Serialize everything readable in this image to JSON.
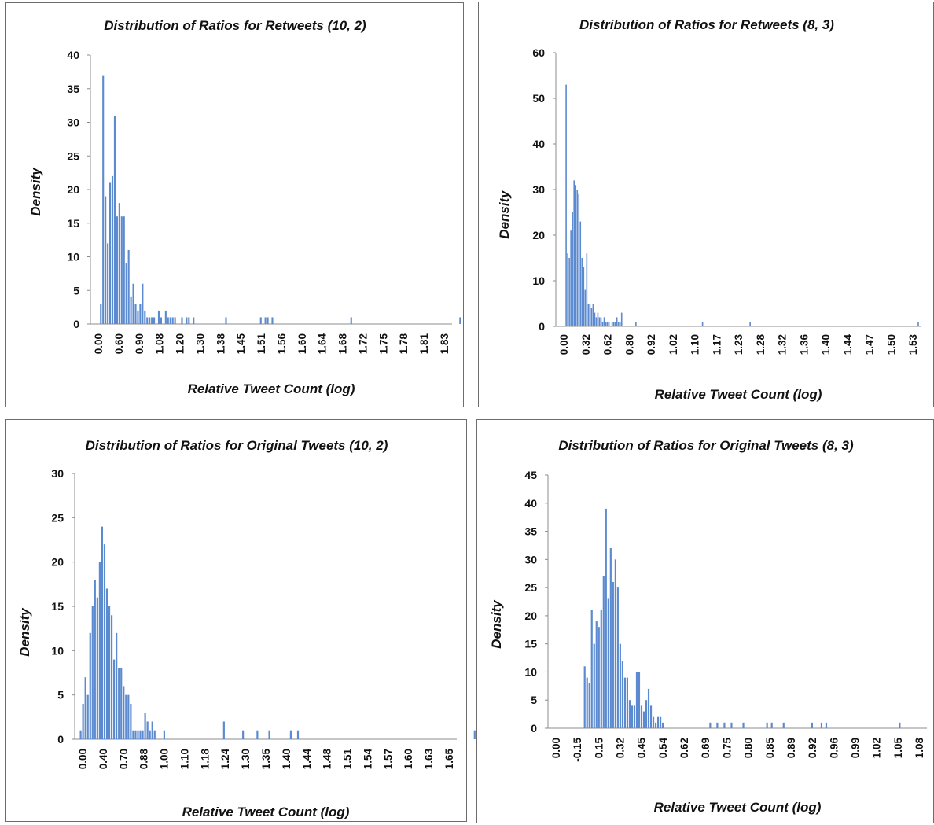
{
  "chart_data": [
    {
      "type": "bar",
      "title": "Distribution of Ratios for Retweets (10, 2)",
      "xlabel": "Relative Tweet Count (log)",
      "ylabel": "Density",
      "ylim": [
        0,
        40
      ],
      "yticks": [
        "0",
        "5",
        "10",
        "15",
        "20",
        "25",
        "30",
        "35",
        "40"
      ],
      "xticks": [
        "0.00",
        "0.60",
        "0.90",
        "1.08",
        "1.20",
        "1.30",
        "1.38",
        "1.45",
        "1.51",
        "1.56",
        "1.60",
        "1.64",
        "1.68",
        "1.72",
        "1.75",
        "1.78",
        "1.81",
        "1.83"
      ],
      "xlim": [
        0,
        156
      ],
      "values": [
        3,
        37,
        19,
        12,
        21,
        22,
        31,
        16,
        18,
        16,
        16,
        9,
        11,
        4,
        6,
        3,
        2,
        3,
        6,
        2,
        1,
        1,
        1,
        1,
        0,
        2,
        1,
        0,
        2,
        1,
        1,
        1,
        1,
        0,
        0,
        1,
        0,
        1,
        1,
        0,
        1,
        0,
        0,
        0,
        0,
        0,
        0,
        0,
        0,
        0,
        0,
        0,
        0,
        0,
        1,
        0,
        0,
        0,
        0,
        0,
        0,
        0,
        0,
        0,
        0,
        0,
        0,
        0,
        0,
        1,
        0,
        1,
        1,
        0,
        1,
        0,
        0,
        0,
        0,
        0,
        0,
        0,
        0,
        0,
        0,
        0,
        0,
        0,
        0,
        0,
        0,
        0,
        0,
        0,
        0,
        0,
        0,
        0,
        0,
        0,
        0,
        0,
        0,
        0,
        0,
        0,
        0,
        0,
        1,
        0,
        0,
        0,
        0,
        0,
        0,
        0,
        0,
        0,
        0,
        0,
        0,
        0,
        0,
        0,
        0,
        0,
        0,
        0,
        0,
        0,
        0,
        0,
        0,
        0,
        0,
        0,
        0,
        0,
        0,
        0,
        0,
        0,
        0,
        0,
        0,
        0,
        0,
        0,
        0,
        0,
        0,
        0,
        0,
        0,
        0,
        1
      ]
    },
    {
      "type": "bar",
      "title": "Distribution of Ratios for Retweets (8, 3)",
      "xlabel": "Relative Tweet Count (log)",
      "ylabel": "Density",
      "ylim": [
        0,
        60
      ],
      "yticks": [
        "0",
        "10",
        "20",
        "30",
        "40",
        "50",
        "60"
      ],
      "xticks": [
        "0.00",
        "0.32",
        "0.62",
        "0.80",
        "0.92",
        "1.02",
        "1.10",
        "1.17",
        "1.23",
        "1.28",
        "1.32",
        "1.36",
        "1.40",
        "1.44",
        "1.47",
        "1.50",
        "1.53"
      ],
      "xlim": [
        0,
        230
      ],
      "values": [
        53,
        16,
        15,
        21,
        25,
        32,
        31,
        30,
        29,
        23,
        15,
        13,
        8,
        16,
        5,
        5,
        4,
        5,
        3,
        2,
        3,
        2,
        2,
        1,
        2,
        1,
        1,
        1,
        0,
        1,
        1,
        1,
        2,
        1,
        1,
        3,
        0,
        0,
        0,
        0,
        0,
        0,
        0,
        0,
        1,
        0,
        0,
        0,
        0,
        0,
        0,
        0,
        0,
        0,
        0,
        0,
        0,
        0,
        0,
        0,
        0,
        0,
        0,
        0,
        0,
        0,
        0,
        0,
        0,
        0,
        0,
        0,
        0,
        0,
        0,
        0,
        0,
        0,
        0,
        0,
        0,
        0,
        0,
        0,
        0,
        0,
        1,
        0,
        0,
        0,
        0,
        0,
        0,
        0,
        0,
        0,
        0,
        0,
        0,
        0,
        0,
        0,
        0,
        0,
        0,
        0,
        0,
        0,
        0,
        0,
        0,
        0,
        0,
        0,
        0,
        0,
        1,
        0,
        0,
        0,
        0,
        0,
        0,
        0,
        0,
        0,
        0,
        0,
        0,
        0,
        0,
        0,
        0,
        0,
        0,
        0,
        0,
        0,
        0,
        0,
        0,
        0,
        0,
        0,
        0,
        0,
        0,
        0,
        0,
        0,
        0,
        0,
        0,
        0,
        0,
        0,
        0,
        0,
        0,
        0,
        0,
        0,
        0,
        0,
        0,
        0,
        0,
        0,
        0,
        0,
        0,
        0,
        0,
        0,
        0,
        0,
        0,
        0,
        0,
        0,
        0,
        0,
        0,
        0,
        0,
        0,
        0,
        0,
        0,
        0,
        0,
        0,
        0,
        0,
        0,
        0,
        0,
        0,
        0,
        0,
        0,
        0,
        0,
        0,
        0,
        0,
        0,
        0,
        0,
        0,
        0,
        0,
        0,
        0,
        0,
        0,
        0,
        0,
        0,
        0,
        0,
        0,
        1
      ],
      "bar_start": 6
    },
    {
      "type": "bar",
      "title": "Distribution of Ratios for Original Tweets (10, 2)",
      "xlabel": "Relative Tweet Count (log)",
      "ylabel": "Density",
      "ylim": [
        0,
        30
      ],
      "yticks": [
        "0",
        "5",
        "10",
        "15",
        "20",
        "25",
        "30"
      ],
      "xticks": [
        "0.00",
        "0.40",
        "0.70",
        "0.88",
        "1.00",
        "1.10",
        "1.18",
        "1.24",
        "1.30",
        "1.35",
        "1.40",
        "1.44",
        "1.48",
        "1.51",
        "1.54",
        "1.57",
        "1.60",
        "1.63",
        "1.65"
      ],
      "xlim": [
        0,
        160
      ],
      "values": [
        1,
        4,
        7,
        5,
        12,
        15,
        18,
        16,
        20,
        24,
        22,
        17,
        15,
        14,
        9,
        12,
        8,
        8,
        6,
        5,
        5,
        4,
        1,
        1,
        1,
        1,
        1,
        3,
        2,
        1,
        2,
        1,
        0,
        0,
        0,
        1,
        0,
        0,
        0,
        0,
        0,
        0,
        0,
        0,
        0,
        0,
        0,
        0,
        0,
        0,
        0,
        0,
        0,
        0,
        0,
        0,
        0,
        0,
        0,
        0,
        0,
        0,
        0,
        0,
        0,
        0,
        0,
        0,
        0,
        0,
        0,
        0,
        0,
        0,
        0,
        0,
        0,
        0,
        0,
        0,
        0,
        0,
        0,
        0,
        0,
        0,
        0,
        0,
        0,
        0,
        0,
        0,
        0,
        0,
        0,
        0,
        0,
        0,
        0,
        0,
        0,
        0,
        0,
        0,
        0,
        0,
        0,
        0,
        0,
        0,
        0,
        0,
        0,
        0,
        0,
        0,
        0,
        0,
        0,
        0,
        0,
        0,
        0,
        0,
        0,
        0,
        0,
        0,
        0,
        0,
        0,
        0,
        0,
        0,
        0,
        0,
        0,
        0,
        0,
        0,
        0,
        0,
        0,
        0,
        0,
        0,
        0,
        0,
        0,
        0,
        0,
        0,
        0,
        0,
        0,
        0,
        0,
        0,
        0,
        0,
        0,
        0,
        0,
        0,
        0,
        1
      ],
      "extra": [
        [
          62,
          2
        ],
        [
          70,
          1
        ],
        [
          76,
          1
        ],
        [
          81,
          1
        ],
        [
          90,
          1
        ],
        [
          93,
          1
        ]
      ],
      "bar_start": 2
    },
    {
      "type": "bar",
      "title": "Distribution of Ratios for Original Tweets (8, 3)",
      "xlabel": "Relative Tweet Count (log)",
      "ylabel": "Density",
      "ylim": [
        0,
        45
      ],
      "yticks": [
        "0",
        "5",
        "10",
        "15",
        "20",
        "25",
        "30",
        "35",
        "40",
        "45"
      ],
      "xticks": [
        "0.00",
        "-0.15",
        "0.15",
        "0.32",
        "0.45",
        "0.54",
        "0.62",
        "0.69",
        "0.75",
        "0.80",
        "0.85",
        "0.89",
        "0.92",
        "0.96",
        "0.99",
        "1.02",
        "1.05",
        "1.08"
      ],
      "xlim": [
        0,
        160
      ],
      "values": [
        11,
        9,
        8,
        21,
        15,
        19,
        18,
        21,
        27,
        39,
        23,
        32,
        26,
        30,
        25,
        15,
        12,
        9,
        9,
        5,
        4,
        4,
        10,
        10,
        4,
        3,
        5,
        7,
        4,
        2,
        1,
        2,
        2,
        1
      ],
      "extra": [
        [
          68,
          1
        ],
        [
          71,
          1
        ],
        [
          74,
          1
        ],
        [
          77,
          1
        ],
        [
          82,
          1
        ],
        [
          92,
          1
        ],
        [
          94,
          1
        ],
        [
          99,
          1
        ],
        [
          111,
          1
        ],
        [
          115,
          1
        ],
        [
          117,
          1
        ],
        [
          148,
          1
        ]
      ],
      "bar_start": 15
    }
  ]
}
